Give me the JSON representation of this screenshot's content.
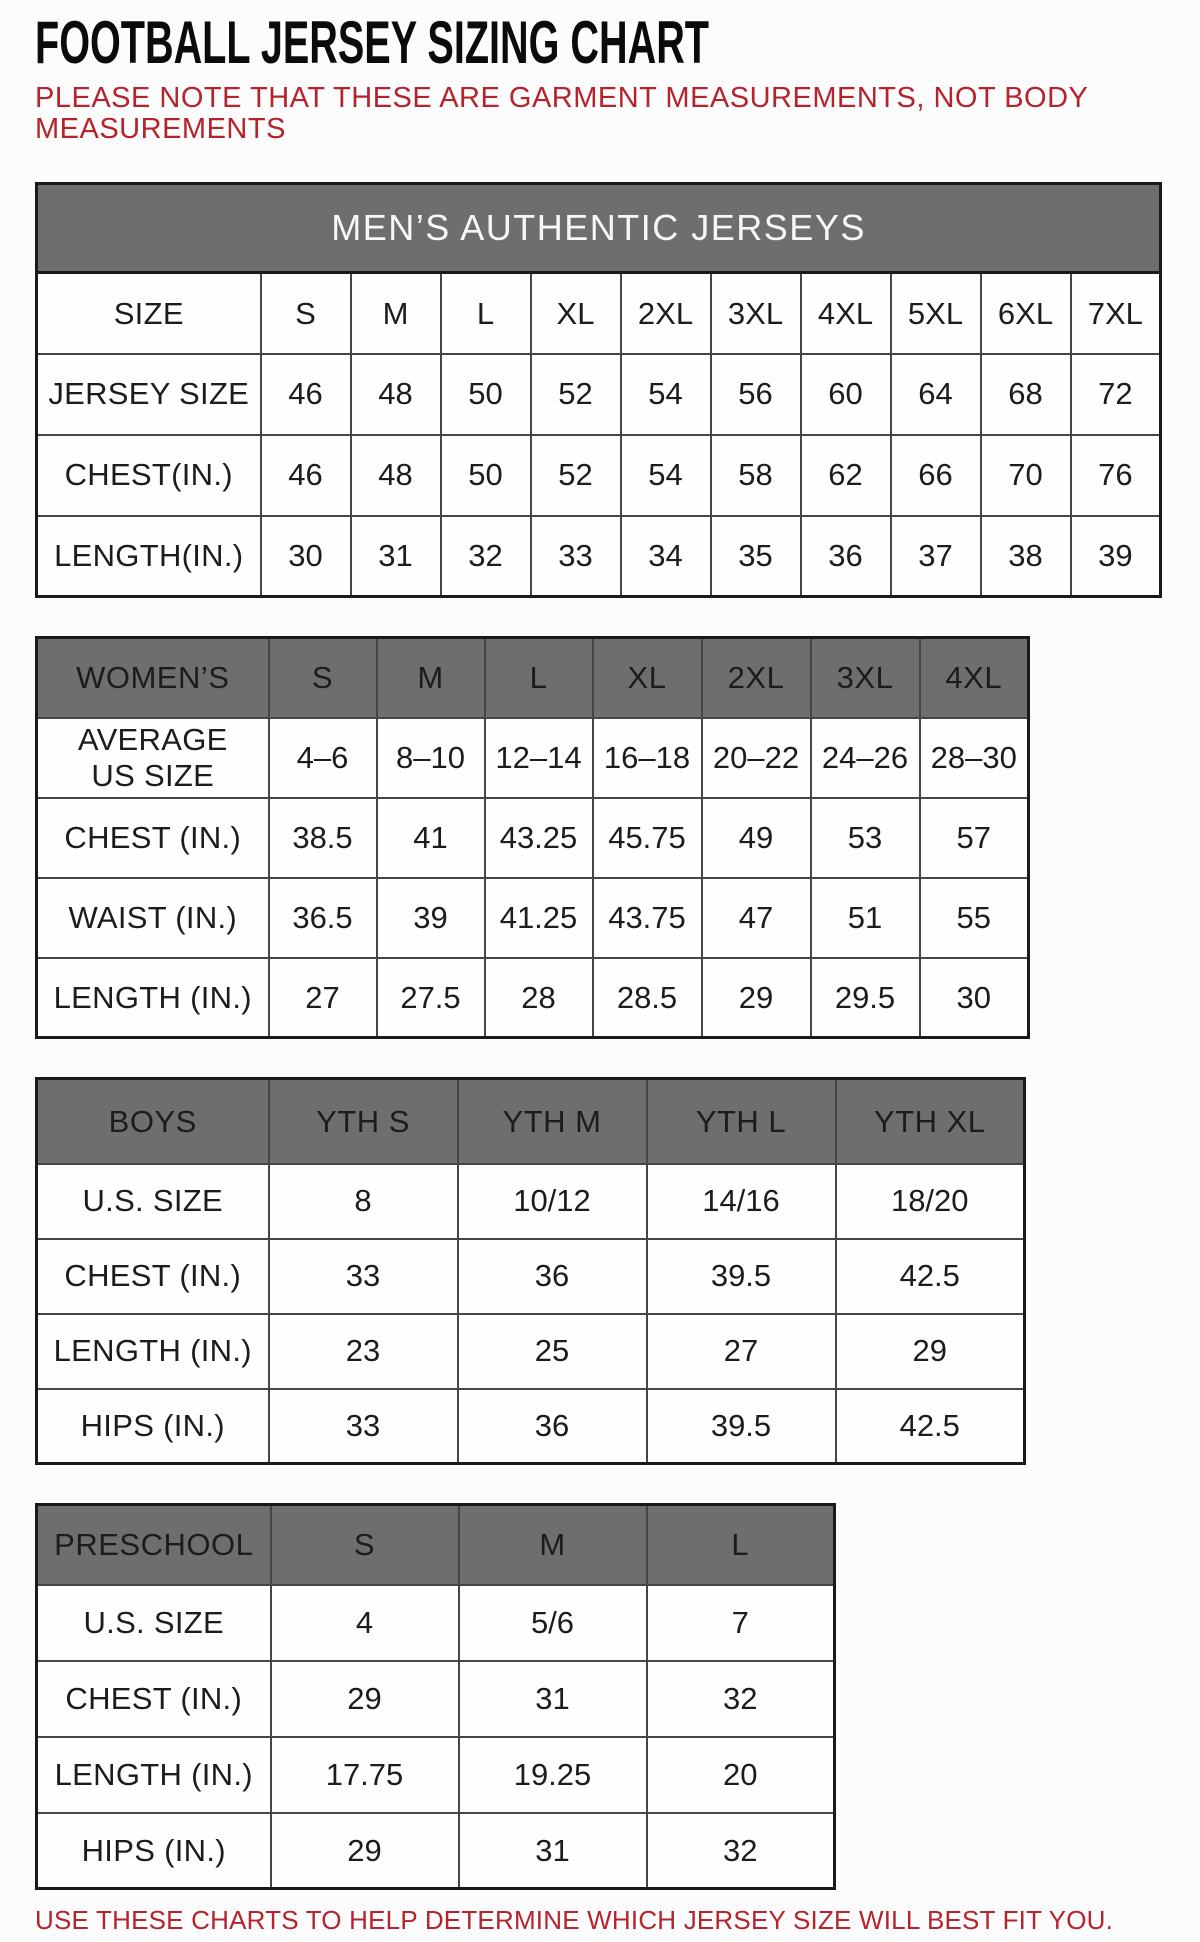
{
  "page": {
    "title": "FOOTBALL JERSEY SIZING CHART",
    "note_top": "PLEASE NOTE THAT THESE ARE GARMENT MEASUREMENTS, NOT BODY MEASUREMENTS",
    "note_bottom": "USE THESE CHARTS TO HELP DETERMINE WHICH JERSEY SIZE WILL BEST FIT YOU.",
    "colors": {
      "accent_red": "#b5232c",
      "header_gray": "#6e6e6e",
      "text_black": "#161616"
    }
  },
  "tables": {
    "mens": {
      "banner": "MEN’S AUTHENTIC JERSEYS",
      "rows": [
        {
          "label": "SIZE",
          "values": [
            "S",
            "M",
            "L",
            "XL",
            "2XL",
            "3XL",
            "4XL",
            "5XL",
            "6XL",
            "7XL"
          ]
        },
        {
          "label": "JERSEY SIZE",
          "values": [
            "46",
            "48",
            "50",
            "52",
            "54",
            "56",
            "60",
            "64",
            "68",
            "72"
          ]
        },
        {
          "label": "CHEST(IN.)",
          "values": [
            "46",
            "48",
            "50",
            "52",
            "54",
            "58",
            "62",
            "66",
            "70",
            "76"
          ]
        },
        {
          "label": "LENGTH(IN.)",
          "values": [
            "30",
            "31",
            "32",
            "33",
            "34",
            "35",
            "36",
            "37",
            "38",
            "39"
          ]
        }
      ]
    },
    "womens": {
      "header_label": "WOMEN’S",
      "columns": [
        "S",
        "M",
        "L",
        "XL",
        "2XL",
        "3XL",
        "4XL"
      ],
      "rows": [
        {
          "label": "AVERAGE\nUS SIZE",
          "values": [
            "4–6",
            "8–10",
            "12–14",
            "16–18",
            "20–22",
            "24–26",
            "28–30"
          ]
        },
        {
          "label": "CHEST (IN.)",
          "values": [
            "38.5",
            "41",
            "43.25",
            "45.75",
            "49",
            "53",
            "57"
          ]
        },
        {
          "label": "WAIST (IN.)",
          "values": [
            "36.5",
            "39",
            "41.25",
            "43.75",
            "47",
            "51",
            "55"
          ]
        },
        {
          "label": "LENGTH (IN.)",
          "values": [
            "27",
            "27.5",
            "28",
            "28.5",
            "29",
            "29.5",
            "30"
          ]
        }
      ]
    },
    "boys": {
      "header_label": "BOYS",
      "columns": [
        "YTH S",
        "YTH M",
        "YTH L",
        "YTH XL"
      ],
      "rows": [
        {
          "label": "U.S. SIZE",
          "values": [
            "8",
            "10/12",
            "14/16",
            "18/20"
          ]
        },
        {
          "label": "CHEST (IN.)",
          "values": [
            "33",
            "36",
            "39.5",
            "42.5"
          ]
        },
        {
          "label": "LENGTH (IN.)",
          "values": [
            "23",
            "25",
            "27",
            "29"
          ]
        },
        {
          "label": "HIPS (IN.)",
          "values": [
            "33",
            "36",
            "39.5",
            "42.5"
          ]
        }
      ]
    },
    "preschool": {
      "header_label": "PRESCHOOL",
      "columns": [
        "S",
        "M",
        "L"
      ],
      "rows": [
        {
          "label": "U.S. SIZE",
          "values": [
            "4",
            "5/6",
            "7"
          ]
        },
        {
          "label": "CHEST (IN.)",
          "values": [
            "29",
            "31",
            "32"
          ]
        },
        {
          "label": "LENGTH (IN.)",
          "values": [
            "17.75",
            "19.25",
            "20"
          ]
        },
        {
          "label": "HIPS (IN.)",
          "values": [
            "29",
            "31",
            "32"
          ]
        }
      ]
    }
  }
}
